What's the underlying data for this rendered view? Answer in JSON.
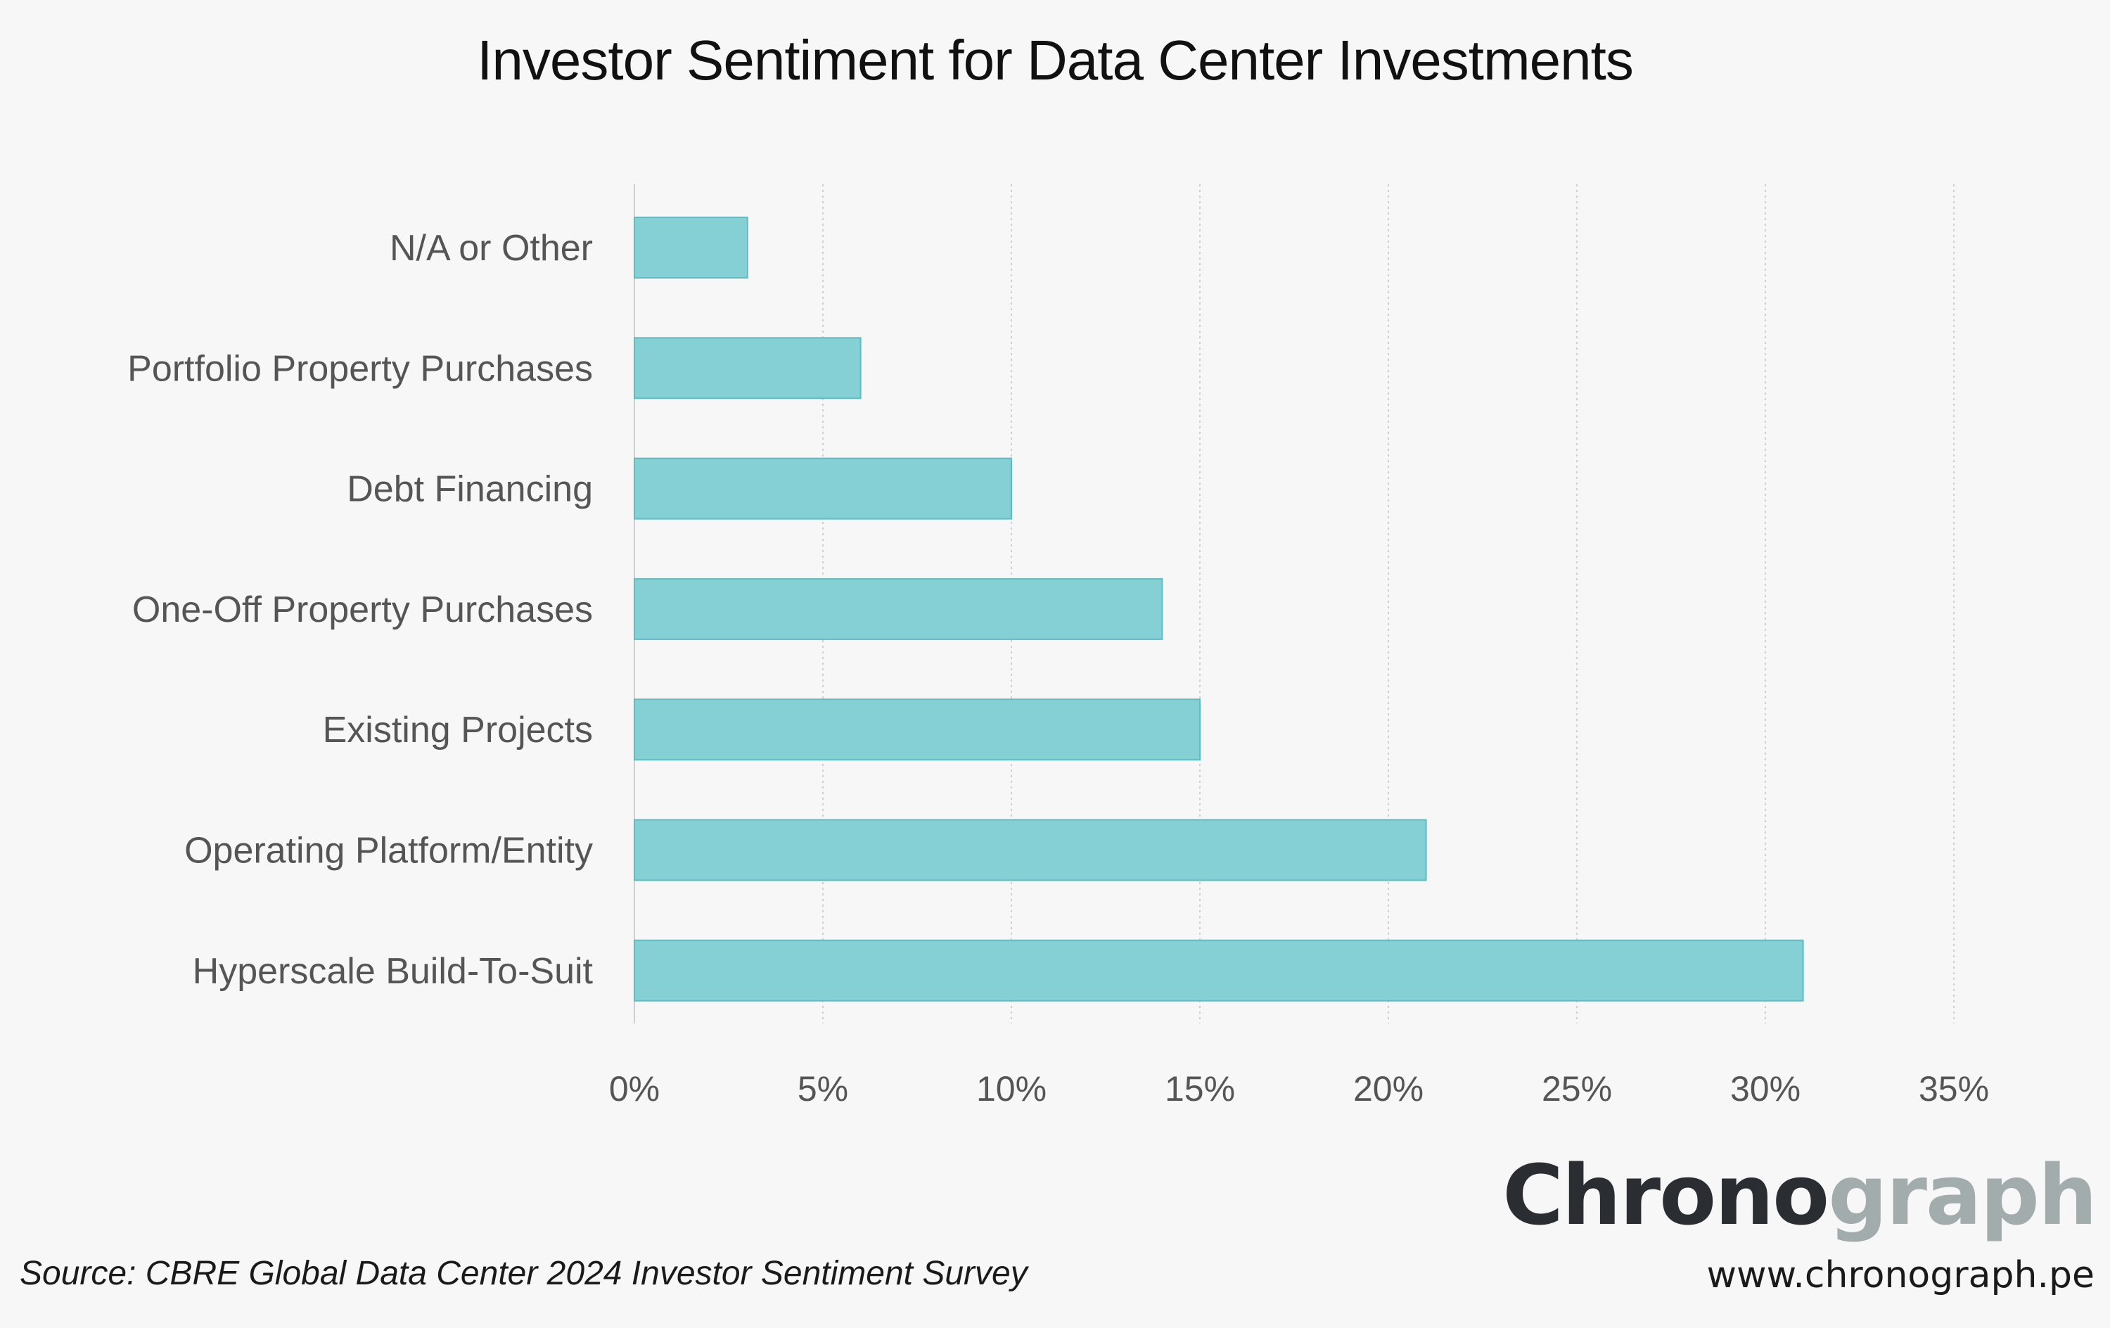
{
  "chart_data": {
    "type": "bar",
    "orientation": "horizontal",
    "title": "Investor Sentiment for Data Center Investments",
    "categories": [
      "N/A or Other",
      "Portfolio Property Purchases",
      "Debt Financing",
      "One-Off Property Purchases",
      "Existing Projects",
      "Operating Platform/Entity",
      "Hyperscale Build-To-Suit"
    ],
    "values": [
      3,
      6,
      10,
      14,
      15,
      21,
      31
    ],
    "xlim": [
      0,
      35
    ],
    "xticks": [
      0,
      5,
      10,
      15,
      20,
      25,
      30,
      35
    ],
    "xtick_labels": [
      "0%",
      "5%",
      "10%",
      "15%",
      "20%",
      "25%",
      "30%",
      "35%"
    ],
    "xlabel": "",
    "ylabel": "",
    "grid": "vertical dotted",
    "legend": "none",
    "bar_color": "#84d0d4",
    "bar_edge_color": "#5fbcc2"
  },
  "footer": {
    "source": "Source: CBRE  Global Data Center 2024 Investor Sentiment Survey",
    "brand_part_1": "Chrono",
    "brand_part_2": "graph",
    "url": "www.chronograph.pe"
  },
  "colors": {
    "background": "#f7f7f7",
    "grid": "#cfcfcf",
    "text": "#555555",
    "brand_dark": "#2a2d31",
    "brand_light": "#a3acad"
  }
}
